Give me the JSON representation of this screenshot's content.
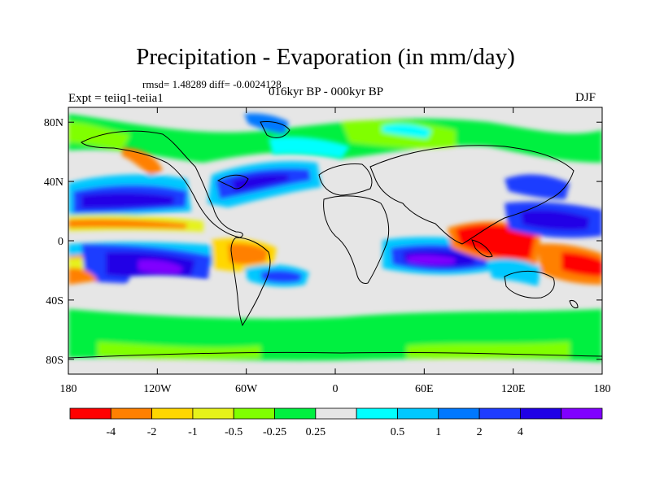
{
  "title": "Precipitation - Evaporation (in mm/day)",
  "stats": "rmsd= 1.48289 diff= -0.0024128",
  "period": "016kyr BP - 000kyr BP",
  "experiment": "Expt = teiiq1-teiia1",
  "season": "DJF",
  "map": {
    "lat_range": [
      -90,
      90
    ],
    "lon_range": [
      -180,
      180
    ],
    "lat_ticks": [
      {
        "value": 80,
        "label": "80N"
      },
      {
        "value": 40,
        "label": "40N"
      },
      {
        "value": 0,
        "label": "0"
      },
      {
        "value": -40,
        "label": "40S"
      },
      {
        "value": -80,
        "label": "80S"
      }
    ],
    "lon_ticks": [
      {
        "value": -180,
        "label": "180"
      },
      {
        "value": -120,
        "label": "120W"
      },
      {
        "value": -60,
        "label": "60W"
      },
      {
        "value": 0,
        "label": "0"
      },
      {
        "value": 60,
        "label": "60E"
      },
      {
        "value": 120,
        "label": "120E"
      },
      {
        "value": 180,
        "label": "180"
      }
    ]
  },
  "colorbar": {
    "colors": [
      "#ff0000",
      "#ff8000",
      "#ffd700",
      "#e6f21a",
      "#80ff00",
      "#00f040",
      "#e6e6e6",
      "#00ffff",
      "#00c8ff",
      "#0078ff",
      "#1e3cff",
      "#2000e6",
      "#8000ff"
    ],
    "labels": [
      {
        "boundary": 1,
        "text": "-4"
      },
      {
        "boundary": 2,
        "text": "-2"
      },
      {
        "boundary": 3,
        "text": "-1"
      },
      {
        "boundary": 4,
        "text": "-0.5"
      },
      {
        "boundary": 5,
        "text": "-0.25"
      },
      {
        "boundary": 6,
        "text": "0.25"
      },
      {
        "boundary": 8,
        "text": "0.5"
      },
      {
        "boundary": 9,
        "text": "1"
      },
      {
        "boundary": 10,
        "text": "2"
      },
      {
        "boundary": 11,
        "text": "4"
      }
    ]
  },
  "colors": {
    "ocean_background": "#e6e6e6",
    "coastline": "#000000"
  }
}
